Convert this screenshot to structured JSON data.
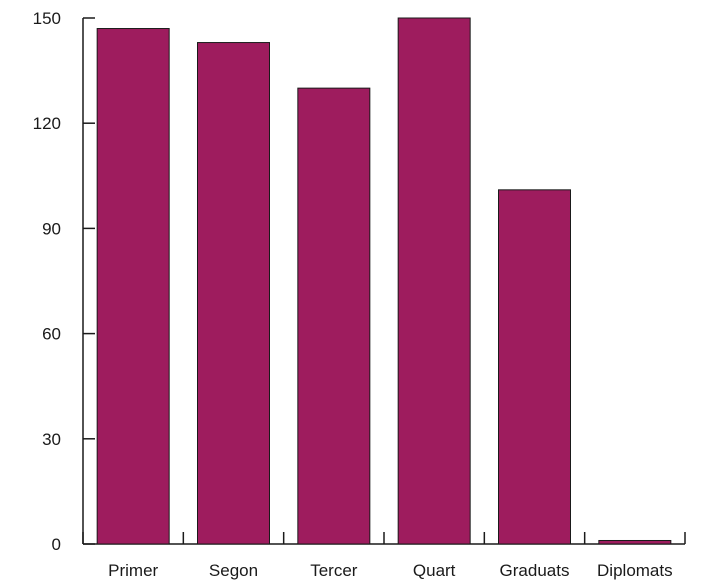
{
  "chart_data": {
    "type": "bar",
    "categories": [
      "Primer",
      "Segon",
      "Tercer",
      "Quart",
      "Graduats",
      "Diplomats"
    ],
    "values": [
      147,
      143,
      130,
      150,
      101,
      1
    ],
    "ylim": [
      0,
      150
    ],
    "yticks": [
      0,
      30,
      60,
      90,
      120,
      150
    ],
    "grid": false,
    "legend": "none",
    "bar_color": "#9e1c5e",
    "axis_color": "#1a1a1a"
  }
}
